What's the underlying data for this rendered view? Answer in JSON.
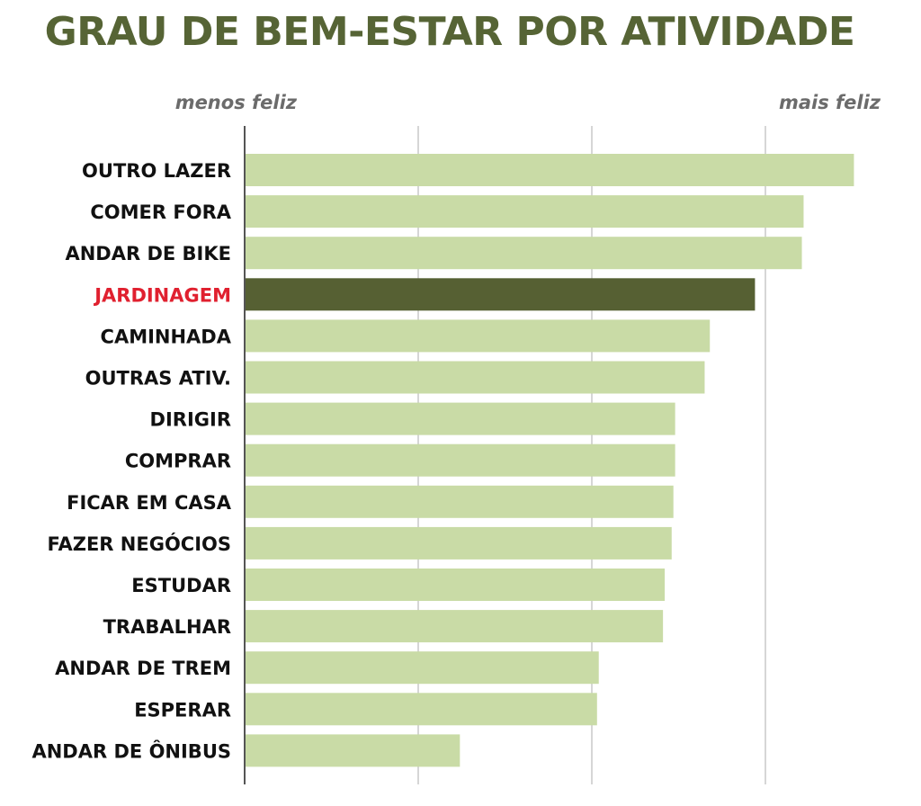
{
  "colors": {
    "title": "#566435",
    "bar": "#c9dba6",
    "bar_highlight": "#566033",
    "label": "#111111",
    "label_highlight": "#e0202f",
    "scale_label": "#6b6b6b",
    "grid": "#c8c8c8",
    "axis": "#555555"
  },
  "chart_data": {
    "type": "bar",
    "orientation": "horizontal",
    "title": "GRAU DE BEM-ESTAR POR ATIVIDADE",
    "scale_low_label": "menos feliz",
    "scale_high_label": "mais feliz",
    "xlim": [
      0,
      3.5
    ],
    "grid": true,
    "highlight": "JARDINAGEM",
    "categories": [
      "OUTRO LAZER",
      "COMER FORA",
      "ANDAR DE BIKE",
      "JARDINAGEM",
      "CAMINHADA",
      "OUTRAS ATIV.",
      "DIRIGIR",
      "COMPRAR",
      "FICAR EM CASA",
      "FAZER NEGÓCIOS",
      "ESTUDAR",
      "TRABALHAR",
      "ANDAR DE TREM",
      "ESPERAR",
      "ANDAR DE ÔNIBUS"
    ],
    "values": [
      3.51,
      3.22,
      3.21,
      2.94,
      2.68,
      2.65,
      2.48,
      2.48,
      2.47,
      2.46,
      2.42,
      2.41,
      2.04,
      2.03,
      1.24
    ]
  }
}
